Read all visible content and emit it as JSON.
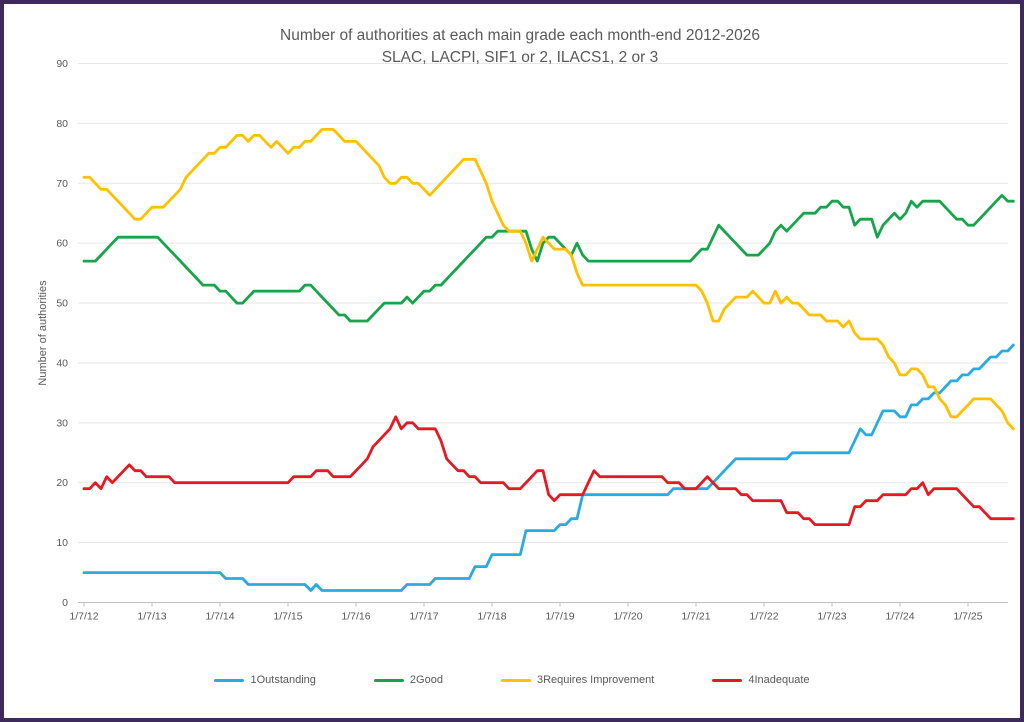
{
  "frame": {
    "border_color": "#3F2A5C",
    "background": "#FFFFFF"
  },
  "chart_data": {
    "type": "line",
    "title_line1": "Number of authorities at each main grade each month-end 2012-2026",
    "title_line2": "SLAC, LACPI, SIF1 or 2, ILACS1, 2 or 3",
    "ylabel": "Number of authorities",
    "ylim": [
      0,
      90
    ],
    "y_ticks": [
      0,
      10,
      20,
      30,
      40,
      50,
      60,
      70,
      80,
      90
    ],
    "x_tick_labels": [
      "1/7/12",
      "1/7/13",
      "1/7/14",
      "1/7/15",
      "1/7/16",
      "1/7/17",
      "1/7/18",
      "1/7/19",
      "1/7/20",
      "1/7/21",
      "1/7/22",
      "1/7/23",
      "1/7/24",
      "1/7/25"
    ],
    "x_frequency": "monthly",
    "points_per_series": 165,
    "grid": "horizontal",
    "legend_position": "bottom",
    "text_color": "#595959",
    "gridline_color": "#E7E7E7",
    "axisline_color": "#BFBFBF",
    "series": [
      {
        "name": "1Outstanding",
        "color": "#29ABE2",
        "values": [
          5,
          5,
          5,
          5,
          5,
          5,
          5,
          5,
          5,
          5,
          5,
          5,
          5,
          5,
          5,
          5,
          5,
          5,
          5,
          5,
          5,
          5,
          5,
          5,
          5,
          4,
          4,
          4,
          4,
          3,
          3,
          3,
          3,
          3,
          3,
          3,
          3,
          3,
          3,
          3,
          2,
          3,
          2,
          2,
          2,
          2,
          2,
          2,
          2,
          2,
          2,
          2,
          2,
          2,
          2,
          2,
          2,
          3,
          3,
          3,
          3,
          3,
          4,
          4,
          4,
          4,
          4,
          4,
          4,
          6,
          6,
          6,
          8,
          8,
          8,
          8,
          8,
          8,
          12,
          12,
          12,
          12,
          12,
          12,
          13,
          13,
          14,
          14,
          18,
          18,
          18,
          18,
          18,
          18,
          18,
          18,
          18,
          18,
          18,
          18,
          18,
          18,
          18,
          18,
          19,
          19,
          19,
          19,
          19,
          19,
          19,
          20,
          21,
          22,
          23,
          24,
          24,
          24,
          24,
          24,
          24,
          24,
          24,
          24,
          24,
          25,
          25,
          25,
          25,
          25,
          25,
          25,
          25,
          25,
          25,
          25,
          27,
          29,
          28,
          28,
          30,
          32,
          32,
          32,
          31,
          31,
          33,
          33,
          34,
          34,
          35,
          35,
          36,
          37,
          37,
          38,
          38,
          39,
          39,
          40,
          41,
          41,
          42,
          42,
          43
        ]
      },
      {
        "name": "2Good",
        "color": "#16A54B",
        "values": [
          57,
          57,
          57,
          58,
          59,
          60,
          61,
          61,
          61,
          61,
          61,
          61,
          61,
          61,
          60,
          59,
          58,
          57,
          56,
          55,
          54,
          53,
          53,
          53,
          52,
          52,
          51,
          50,
          50,
          51,
          52,
          52,
          52,
          52,
          52,
          52,
          52,
          52,
          52,
          53,
          53,
          52,
          51,
          50,
          49,
          48,
          48,
          47,
          47,
          47,
          47,
          48,
          49,
          50,
          50,
          50,
          50,
          51,
          50,
          51,
          52,
          52,
          53,
          53,
          54,
          55,
          56,
          57,
          58,
          59,
          60,
          61,
          61,
          62,
          62,
          62,
          62,
          62,
          62,
          59,
          57,
          60,
          61,
          61,
          60,
          59,
          58,
          60,
          58,
          57,
          57,
          57,
          57,
          57,
          57,
          57,
          57,
          57,
          57,
          57,
          57,
          57,
          57,
          57,
          57,
          57,
          57,
          57,
          58,
          59,
          59,
          61,
          63,
          62,
          61,
          60,
          59,
          58,
          58,
          58,
          59,
          60,
          62,
          63,
          62,
          63,
          64,
          65,
          65,
          65,
          66,
          66,
          67,
          67,
          66,
          66,
          63,
          64,
          64,
          64,
          61,
          63,
          64,
          65,
          64,
          65,
          67,
          66,
          67,
          67,
          67,
          67,
          66,
          65,
          64,
          64,
          63,
          63,
          64,
          65,
          66,
          67,
          68,
          67,
          67
        ]
      },
      {
        "name": "3Requires Improvement",
        "color": "#FFC000",
        "values": [
          71,
          71,
          70,
          69,
          69,
          68,
          67,
          66,
          65,
          64,
          64,
          65,
          66,
          66,
          66,
          67,
          68,
          69,
          71,
          72,
          73,
          74,
          75,
          75,
          76,
          76,
          77,
          78,
          78,
          77,
          78,
          78,
          77,
          76,
          77,
          76,
          75,
          76,
          76,
          77,
          77,
          78,
          79,
          79,
          79,
          78,
          77,
          77,
          77,
          76,
          75,
          74,
          73,
          71,
          70,
          70,
          71,
          71,
          70,
          70,
          69,
          68,
          69,
          70,
          71,
          72,
          73,
          74,
          74,
          74,
          72,
          70,
          67,
          65,
          63,
          62,
          62,
          62,
          60,
          57,
          59,
          61,
          60,
          59,
          59,
          59,
          58,
          55,
          53,
          53,
          53,
          53,
          53,
          53,
          53,
          53,
          53,
          53,
          53,
          53,
          53,
          53,
          53,
          53,
          53,
          53,
          53,
          53,
          53,
          52,
          50,
          47,
          47,
          49,
          50,
          51,
          51,
          51,
          52,
          51,
          50,
          50,
          52,
          50,
          51,
          50,
          50,
          49,
          48,
          48,
          48,
          47,
          47,
          47,
          46,
          47,
          45,
          44,
          44,
          44,
          44,
          43,
          41,
          40,
          38,
          38,
          39,
          39,
          38,
          36,
          36,
          34,
          33,
          31,
          31,
          32,
          33,
          34,
          34,
          34,
          34,
          33,
          32,
          30,
          29
        ]
      },
      {
        "name": "4Inadequate",
        "color": "#E81823",
        "values": [
          19,
          19,
          20,
          19,
          21,
          20,
          21,
          22,
          23,
          22,
          22,
          21,
          21,
          21,
          21,
          21,
          20,
          20,
          20,
          20,
          20,
          20,
          20,
          20,
          20,
          20,
          20,
          20,
          20,
          20,
          20,
          20,
          20,
          20,
          20,
          20,
          20,
          21,
          21,
          21,
          21,
          22,
          22,
          22,
          21,
          21,
          21,
          21,
          22,
          23,
          24,
          26,
          27,
          28,
          29,
          31,
          29,
          30,
          30,
          29,
          29,
          29,
          29,
          27,
          24,
          23,
          22,
          22,
          21,
          21,
          20,
          20,
          20,
          20,
          20,
          19,
          19,
          19,
          20,
          21,
          22,
          22,
          18,
          17,
          18,
          18,
          18,
          18,
          18,
          20,
          22,
          21,
          21,
          21,
          21,
          21,
          21,
          21,
          21,
          21,
          21,
          21,
          21,
          20,
          20,
          20,
          19,
          19,
          19,
          20,
          21,
          20,
          19,
          19,
          19,
          19,
          18,
          18,
          17,
          17,
          17,
          17,
          17,
          17,
          15,
          15,
          15,
          14,
          14,
          13,
          13,
          13,
          13,
          13,
          13,
          13,
          16,
          16,
          17,
          17,
          17,
          18,
          18,
          18,
          18,
          18,
          19,
          19,
          20,
          18,
          19,
          19,
          19,
          19,
          19,
          18,
          17,
          16,
          16,
          15,
          14,
          14,
          14,
          14,
          14
        ]
      }
    ]
  }
}
